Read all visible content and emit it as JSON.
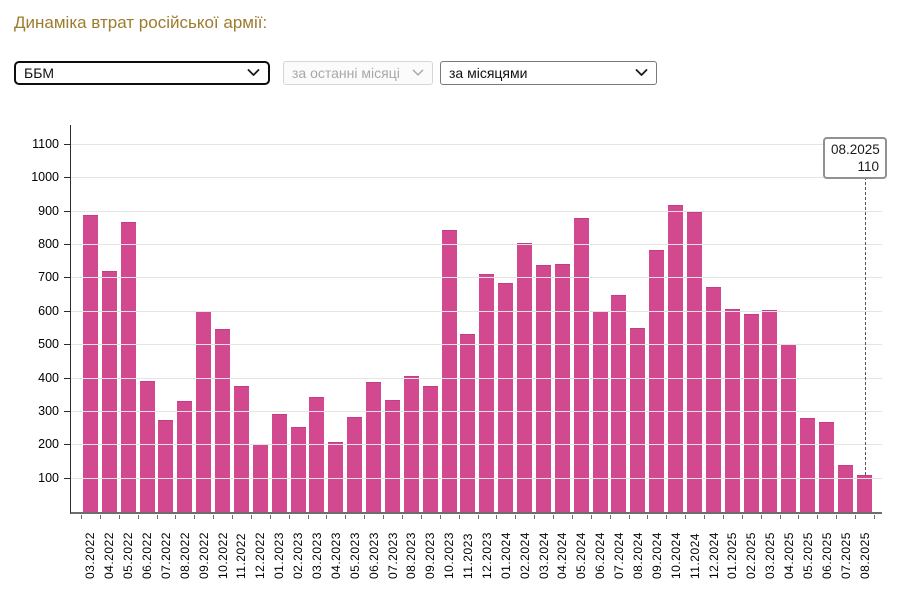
{
  "page": {
    "title": "Динаміка втрат російської армії:"
  },
  "controls": {
    "category": {
      "value": "ББМ"
    },
    "period": {
      "value": "за останні місяці",
      "disabled": true
    },
    "grouping": {
      "value": "за місяцями"
    }
  },
  "tooltip": {
    "label": "08.2025",
    "value": "110"
  },
  "colors": {
    "title": "#9c7c2e",
    "bar": "#d2498f",
    "grid": "#e4e4e4",
    "axis": "#6e6e6e"
  },
  "chart_data": {
    "type": "bar",
    "title": "",
    "xlabel": "",
    "ylabel": "",
    "categories": [
      "03.2022",
      "04.2022",
      "05.2022",
      "06.2022",
      "07.2022",
      "08.2022",
      "09.2022",
      "10.2022",
      "11.2022",
      "12.2022",
      "01.2023",
      "02.2023",
      "03.2023",
      "04.2023",
      "05.2023",
      "06.2023",
      "07.2023",
      "08.2023",
      "09.2023",
      "10.2023",
      "11.2023",
      "12.2023",
      "01.2024",
      "02.2024",
      "03.2024",
      "04.2024",
      "05.2024",
      "06.2024",
      "07.2024",
      "08.2024",
      "09.2024",
      "10.2024",
      "11.2024",
      "12.2024",
      "01.2025",
      "02.2025",
      "03.2025",
      "04.2025",
      "05.2025",
      "06.2025",
      "07.2025",
      "08.2025"
    ],
    "values": [
      889,
      721,
      870,
      392,
      275,
      334,
      604,
      550,
      378,
      205,
      294,
      254,
      344,
      209,
      285,
      389,
      335,
      407,
      378,
      844,
      535,
      714,
      686,
      807,
      740,
      742,
      880,
      604,
      651,
      553,
      784,
      921,
      898,
      673,
      610,
      594,
      607,
      503,
      283,
      270,
      142,
      110
    ],
    "ylim": [
      0,
      1160
    ],
    "yticks": [
      100,
      200,
      300,
      400,
      500,
      600,
      700,
      800,
      900,
      1000,
      1100
    ],
    "grid": true,
    "legend": false,
    "bar_color": "#d2498f",
    "highlight": {
      "category": "08.2025",
      "value": 110
    }
  }
}
